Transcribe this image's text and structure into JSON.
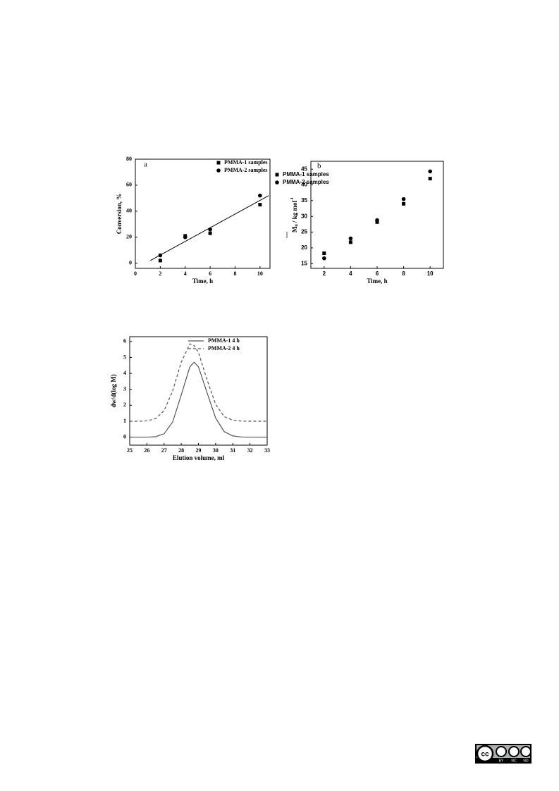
{
  "chart_data": [
    {
      "type": "scatter",
      "annotation": "a",
      "xlabel": "Time, h",
      "ylabel": "Conversion, %",
      "xlim": [
        0,
        10.8
      ],
      "ylim": [
        -4,
        80
      ],
      "xticks": [
        0,
        2,
        4,
        6,
        8,
        10
      ],
      "yticks": [
        0,
        20,
        40,
        60,
        80
      ],
      "series": [
        {
          "name": "PMMA-1 samples",
          "marker": "square",
          "color": "#000000",
          "x": [
            2,
            4,
            6,
            10
          ],
          "values": [
            2,
            21,
            23,
            45
          ]
        },
        {
          "name": "PMMA-2 samples",
          "marker": "circle",
          "color": "#000000",
          "x": [
            2,
            4,
            6,
            10
          ],
          "values": [
            6,
            20,
            26,
            52
          ]
        }
      ],
      "trend_line": {
        "x": [
          1.2,
          10.7
        ],
        "y": [
          2,
          52
        ]
      }
    },
    {
      "type": "scatter",
      "annotation": "b",
      "xlabel": "Time, h",
      "ylabel": "M",
      "ylabel_sub": "n",
      "ylabel_rest": " / kg mol",
      "ylabel_sup": "-1",
      "xlim": [
        1,
        11
      ],
      "ylim": [
        13.5,
        47.5
      ],
      "xticks": [
        2,
        4,
        6,
        8,
        10
      ],
      "yticks": [
        15,
        20,
        25,
        30,
        35,
        40,
        45
      ],
      "series": [
        {
          "name": "PMMA-1 samples",
          "marker": "square",
          "color": "#000000",
          "x": [
            2,
            4,
            6,
            8,
            10
          ],
          "values": [
            18.3,
            21.8,
            28.2,
            34,
            42
          ]
        },
        {
          "name": "PMMA-2 samples",
          "marker": "circle",
          "color": "#000000",
          "x": [
            2,
            4,
            6,
            8,
            10
          ],
          "values": [
            16.7,
            23,
            28.8,
            35.5,
            44.3
          ]
        }
      ]
    },
    {
      "type": "line",
      "xlabel": "Elution volume, ml",
      "ylabel": "dw/d(log M)",
      "xlim": [
        25,
        33
      ],
      "ylim": [
        -0.5,
        6.3
      ],
      "xticks": [
        25,
        26,
        27,
        28,
        29,
        30,
        31,
        32,
        33
      ],
      "yticks": [
        0,
        1,
        2,
        3,
        4,
        5,
        6
      ],
      "x": [
        25,
        25.5,
        26,
        26.5,
        27,
        27.5,
        28,
        28.5,
        28.75,
        29,
        29.5,
        30,
        30.5,
        31,
        31.5,
        32,
        32.5,
        33
      ],
      "series": [
        {
          "name": "PMMA-1  4 h",
          "dash": false,
          "color": "#555555",
          "values": [
            0,
            0,
            0,
            0.03,
            0.21,
            0.95,
            2.65,
            4.41,
            4.7,
            4.41,
            2.8,
            1.2,
            0.35,
            0.08,
            0.01,
            0,
            0,
            0
          ]
        },
        {
          "name": "PMMA-2  4 h",
          "dash": true,
          "color": "#555555",
          "values": [
            1,
            1,
            1.02,
            1.16,
            1.66,
            2.9,
            4.7,
            5.85,
            5.75,
            5.32,
            3.6,
            2.06,
            1.29,
            1.07,
            1.01,
            1,
            1,
            1
          ]
        }
      ]
    }
  ],
  "license": {
    "badge": "cc",
    "terms": [
      "BY",
      "NC",
      "ND"
    ]
  }
}
